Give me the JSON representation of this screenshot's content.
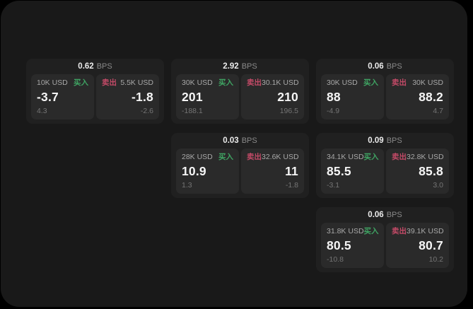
{
  "page": {
    "background": "#000000",
    "surface_background": "#191919"
  },
  "labels": {
    "bps_unit": "BPS",
    "buy": "买入",
    "sell": "卖出"
  },
  "colors": {
    "buy_green": "#3fa463",
    "sell_red": "#c34a67",
    "price_text": "#f5f5f5",
    "muted_text": "#8a8a8a",
    "card_background": "#202020",
    "panel_background": "#2a2a2a"
  },
  "cards": [
    {
      "bps": "0.62",
      "buy": {
        "amount": "10K USD",
        "price": "-3.7",
        "delta": "4.3"
      },
      "sell": {
        "amount": "5.5K USD",
        "price": "-1.8",
        "delta": "-2.6"
      }
    },
    {
      "bps": "2.92",
      "buy": {
        "amount": "30K USD",
        "price": "201",
        "delta": "-188.1"
      },
      "sell": {
        "amount": "30.1K USD",
        "price": "210",
        "delta": "196.5"
      }
    },
    {
      "bps": "0.06",
      "buy": {
        "amount": "30K USD",
        "price": "88",
        "delta": "-4.9"
      },
      "sell": {
        "amount": "30K USD",
        "price": "88.2",
        "delta": "4.7"
      }
    },
    {
      "bps": "0.03",
      "buy": {
        "amount": "28K USD",
        "price": "10.9",
        "delta": "1.3"
      },
      "sell": {
        "amount": "32.6K USD",
        "price": "11",
        "delta": "-1.8"
      }
    },
    {
      "bps": "0.09",
      "buy": {
        "amount": "34.1K USD",
        "price": "85.5",
        "delta": "-3.1"
      },
      "sell": {
        "amount": "32.8K USD",
        "price": "85.8",
        "delta": "3.0"
      }
    },
    {
      "bps": "0.06",
      "buy": {
        "amount": "31.8K USD",
        "price": "80.5",
        "delta": "-10.8"
      },
      "sell": {
        "amount": "39.1K USD",
        "price": "80.7",
        "delta": "10.2"
      }
    }
  ]
}
